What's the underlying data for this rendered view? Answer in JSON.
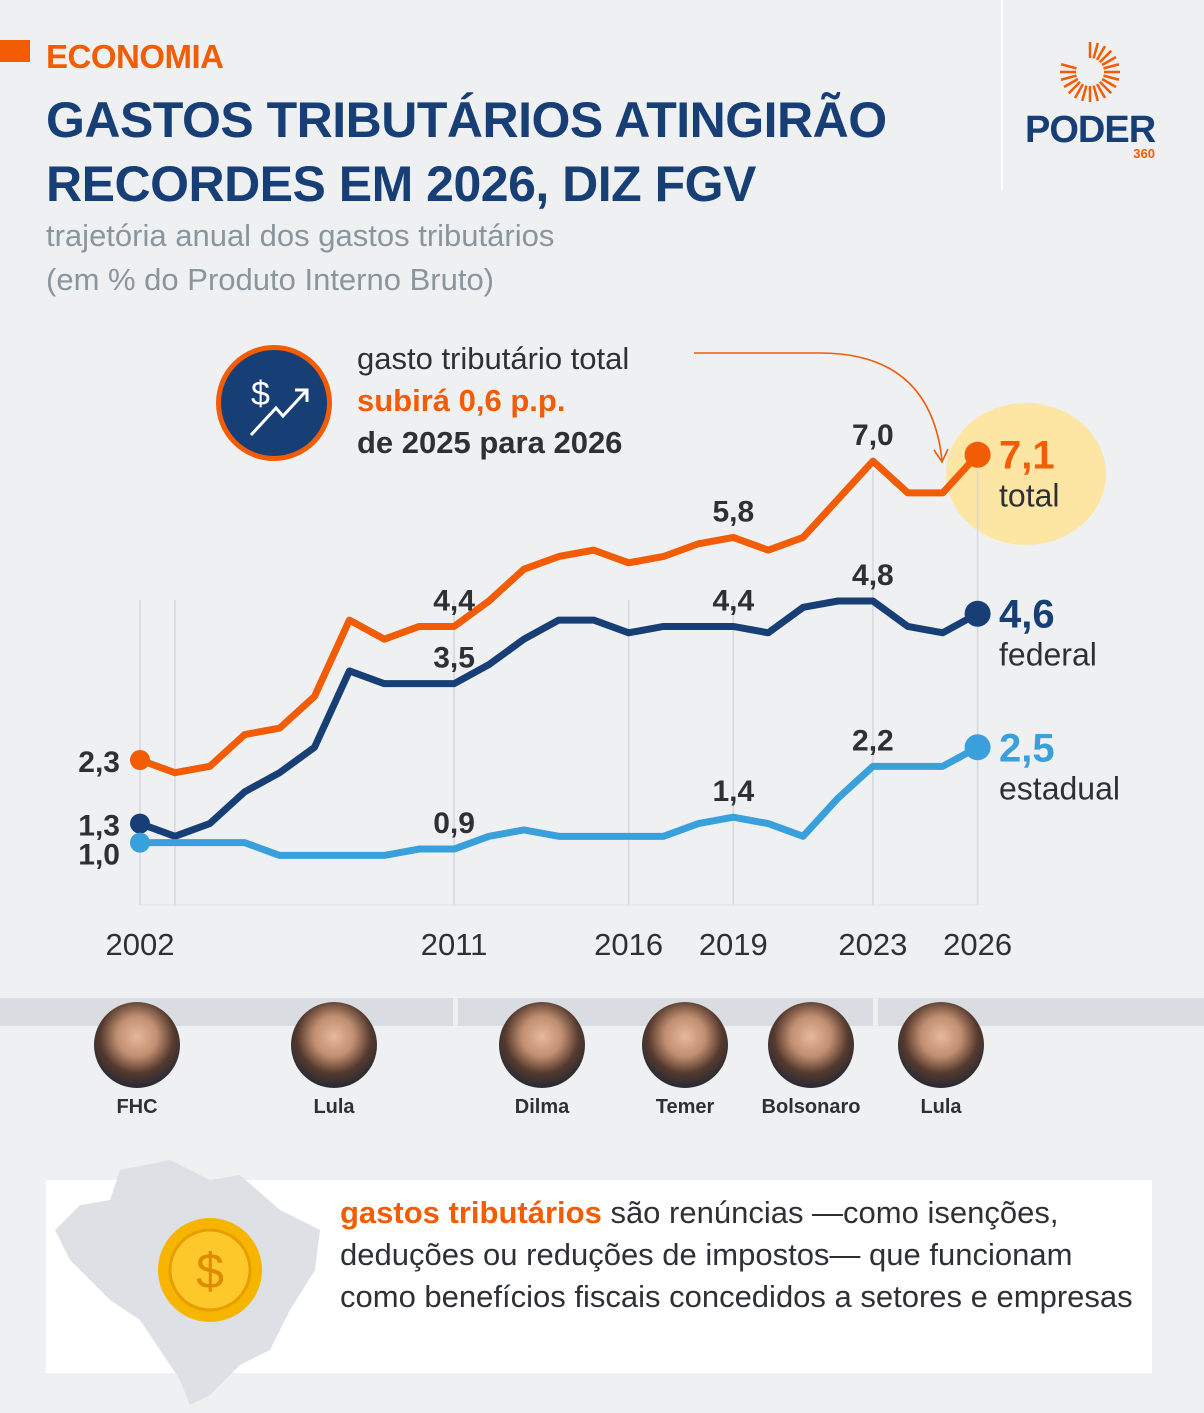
{
  "header": {
    "section": "ECONOMIA",
    "title": "GASTOS TRIBUTÁRIOS ATINGIRÃO RECORDES EM 2026, DIZ FGV",
    "subtitle_line1": "trajetória anual dos gastos tributários",
    "subtitle_line2": "(em % do Produto Interno Bruto)"
  },
  "logo": {
    "word": "PODER",
    "number": "360"
  },
  "callout": {
    "line1": "gasto tributário total",
    "line2": "subirá 0,6 p.p.",
    "line3": "de 2025 para 2026",
    "icon": "dollar-trend-up-icon"
  },
  "colors": {
    "total": "#f25c05",
    "federal": "#183f75",
    "estadual": "#3aa0dc",
    "highlight": "#fde6a4"
  },
  "chart_data": {
    "type": "line",
    "x": [
      2002,
      2003,
      2004,
      2005,
      2006,
      2007,
      2008,
      2009,
      2010,
      2011,
      2012,
      2013,
      2014,
      2015,
      2016,
      2017,
      2018,
      2019,
      2020,
      2021,
      2022,
      2023,
      2024,
      2025,
      2026
    ],
    "x_tick_labels": [
      "2002",
      "2011",
      "2016",
      "2019",
      "2023",
      "2026"
    ],
    "series": [
      {
        "name": "total",
        "values": [
          2.3,
          2.1,
          2.2,
          2.7,
          2.8,
          3.3,
          4.5,
          4.2,
          4.4,
          4.4,
          4.8,
          5.3,
          5.5,
          5.6,
          5.4,
          5.5,
          5.7,
          5.8,
          5.6,
          5.8,
          6.4,
          7.0,
          6.5,
          6.5,
          7.1
        ]
      },
      {
        "name": "federal",
        "values": [
          1.3,
          1.1,
          1.3,
          1.8,
          2.1,
          2.5,
          3.7,
          3.5,
          3.5,
          3.5,
          3.8,
          4.2,
          4.5,
          4.5,
          4.3,
          4.4,
          4.4,
          4.4,
          4.3,
          4.7,
          4.8,
          4.8,
          4.4,
          4.3,
          4.6
        ]
      },
      {
        "name": "estadual",
        "values": [
          1.0,
          1.0,
          1.0,
          1.0,
          0.8,
          0.8,
          0.8,
          0.8,
          0.9,
          0.9,
          1.1,
          1.2,
          1.1,
          1.1,
          1.1,
          1.1,
          1.3,
          1.4,
          1.3,
          1.1,
          1.7,
          2.2,
          2.2,
          2.2,
          2.5
        ]
      }
    ],
    "data_labels": [
      {
        "series": "total",
        "x": 2002,
        "text": "2,3"
      },
      {
        "series": "total",
        "x": 2011,
        "text": "4,4"
      },
      {
        "series": "total",
        "x": 2019,
        "text": "5,8"
      },
      {
        "series": "total",
        "x": 2023,
        "text": "7,0"
      },
      {
        "series": "federal",
        "x": 2002,
        "text": "1,3"
      },
      {
        "series": "federal",
        "x": 2011,
        "text": "3,5"
      },
      {
        "series": "federal",
        "x": 2019,
        "text": "4,4"
      },
      {
        "series": "federal",
        "x": 2023,
        "text": "4,8"
      },
      {
        "series": "estadual",
        "x": 2002,
        "text": "1,0"
      },
      {
        "series": "estadual",
        "x": 2011,
        "text": "0,9"
      },
      {
        "series": "estadual",
        "x": 2019,
        "text": "1,4"
      },
      {
        "series": "estadual",
        "x": 2023,
        "text": "2,2"
      }
    ],
    "end_labels": [
      {
        "series": "total",
        "value": "7,1",
        "label": "total"
      },
      {
        "series": "federal",
        "value": "4,6",
        "label": "federal"
      },
      {
        "series": "estadual",
        "value": "2,5",
        "label": "estadual"
      }
    ],
    "grid": "vertical lines at labeled years",
    "legend": "inline end labels"
  },
  "presidents": [
    {
      "name": "FHC"
    },
    {
      "name": "Lula"
    },
    {
      "name": "Dilma"
    },
    {
      "name": "Temer"
    },
    {
      "name": "Bolsonaro"
    },
    {
      "name": "Lula"
    }
  ],
  "info": {
    "highlight": "gastos tributários",
    "text": " são renúncias —como isenções, deduções ou reduções de impostos— que funcionam como benefícios fiscais concedidos a setores e empresas",
    "icon": "brazil-map-coin-icon"
  }
}
